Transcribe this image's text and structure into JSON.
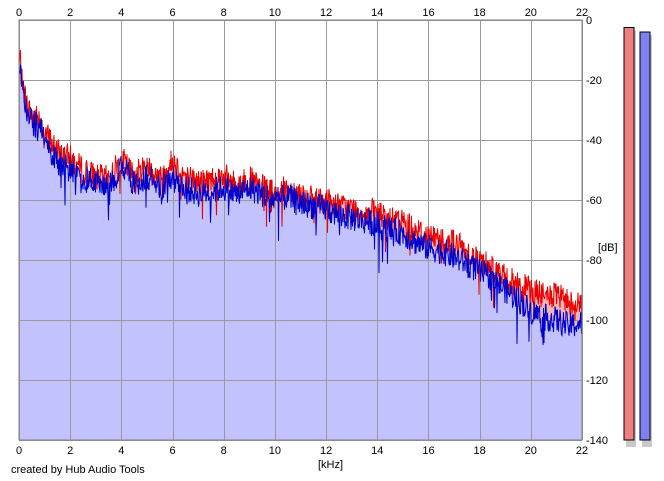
{
  "chart_data": {
    "type": "area",
    "title": "",
    "xlabel": "[kHz]",
    "ylabel": "[dB]",
    "xlim": [
      0,
      22
    ],
    "ylim": [
      -140,
      0
    ],
    "x_ticks": [
      0,
      2,
      4,
      6,
      8,
      10,
      12,
      14,
      16,
      18,
      20,
      22
    ],
    "y_ticks": [
      0,
      -20,
      -40,
      -60,
      -80,
      -100,
      -120,
      -140
    ],
    "x_tick_labels_top": [
      "0",
      "2",
      "4",
      "6",
      "8",
      "10",
      "12",
      "14",
      "16",
      "18",
      "20",
      "22"
    ],
    "x_tick_labels_bottom": [
      "0",
      "2",
      "4",
      "6",
      "8",
      "10",
      "12",
      "14",
      "16",
      "18",
      "20",
      "22"
    ],
    "y_tick_labels": [
      "0",
      "-20",
      "-40",
      "-60",
      "-80",
      "-100",
      "-120",
      "-140"
    ],
    "grid": true,
    "series": [
      {
        "color": "#ee0000",
        "fill": "#f3b4b8",
        "x": [
          0,
          0.05,
          0.1,
          0.2,
          0.3,
          0.5,
          0.8,
          1,
          1.5,
          2,
          2.5,
          3,
          3.5,
          4,
          4.5,
          5,
          5.5,
          6,
          6.5,
          7,
          7.5,
          8,
          8.5,
          9,
          9.5,
          10,
          10.5,
          11,
          11.5,
          12,
          12.5,
          13,
          13.5,
          14,
          14.5,
          15,
          15.5,
          16,
          16.5,
          17,
          17.5,
          18,
          18.5,
          19,
          19.5,
          20,
          20.5,
          21,
          21.5,
          22
        ],
        "values": [
          -15,
          -12,
          -20,
          -24,
          -28,
          -32,
          -33,
          -37,
          -44,
          -46,
          -50,
          -52,
          -53,
          -46,
          -52,
          -48,
          -53,
          -47,
          -52,
          -54,
          -53,
          -52,
          -55,
          -53,
          -56,
          -58,
          -56,
          -58,
          -60,
          -60,
          -62,
          -63,
          -64,
          -64,
          -67,
          -67,
          -70,
          -72,
          -73,
          -74,
          -77,
          -80,
          -82,
          -86,
          -88,
          -90,
          -92,
          -92,
          -94,
          -95
        ]
      },
      {
        "color": "#0000cc",
        "fill": "#c2c2fe",
        "x": [
          0,
          0.05,
          0.1,
          0.2,
          0.3,
          0.5,
          0.8,
          1,
          1.5,
          2,
          2.5,
          3,
          3.5,
          4,
          4.5,
          5,
          5.5,
          6,
          6.5,
          7,
          7.5,
          8,
          8.5,
          9,
          9.5,
          10,
          10.5,
          11,
          11.5,
          12,
          12.5,
          13,
          13.5,
          14,
          14.5,
          15,
          15.5,
          16,
          16.5,
          17,
          17.5,
          18,
          18.5,
          19,
          19.5,
          20,
          20.5,
          21,
          21.5,
          22
        ],
        "values": [
          -18,
          -14,
          -22,
          -26,
          -30,
          -34,
          -36,
          -40,
          -48,
          -50,
          -53,
          -54,
          -56,
          -48,
          -55,
          -52,
          -56,
          -52,
          -56,
          -58,
          -57,
          -56,
          -58,
          -56,
          -58,
          -60,
          -59,
          -61,
          -62,
          -63,
          -65,
          -66,
          -67,
          -68,
          -70,
          -71,
          -74,
          -76,
          -77,
          -79,
          -81,
          -84,
          -86,
          -90,
          -93,
          -97,
          -99,
          -100,
          -102,
          -101
        ]
      }
    ],
    "level_meters": [
      {
        "channel": "left",
        "color": "#f08080",
        "level_db": -2.5
      },
      {
        "channel": "right",
        "color": "#8080f0",
        "level_db": -4.0
      }
    ],
    "credit": "created by Hub Audio Tools"
  }
}
